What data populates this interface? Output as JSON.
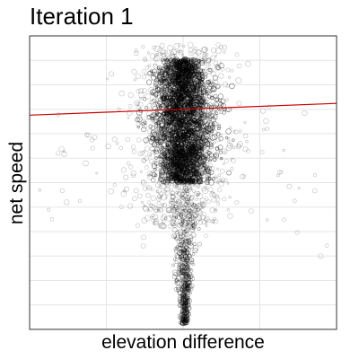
{
  "chart_data": {
    "type": "scatter",
    "title": "Iteration 1",
    "xlabel": "elevation difference",
    "ylabel": "net speed",
    "x_ticks_labeled": false,
    "y_ticks_labeled": false,
    "grid": true,
    "point_style": "open circles, semi-transparent, size varies",
    "regression_line": {
      "color": "#cc0000",
      "start": [
        0.0,
        0.73
      ],
      "end": [
        1.0,
        0.77
      ]
    },
    "cluster": {
      "center_x": 0.5,
      "dense_core_x": [
        0.46,
        0.56
      ],
      "dense_core_y": [
        0.5,
        0.92
      ],
      "tail_y_min": 0.02
    },
    "colors": {
      "points": "#000000",
      "line": "#cc0000",
      "grid": "#e5e5e5",
      "panel_border": "#333333"
    }
  }
}
